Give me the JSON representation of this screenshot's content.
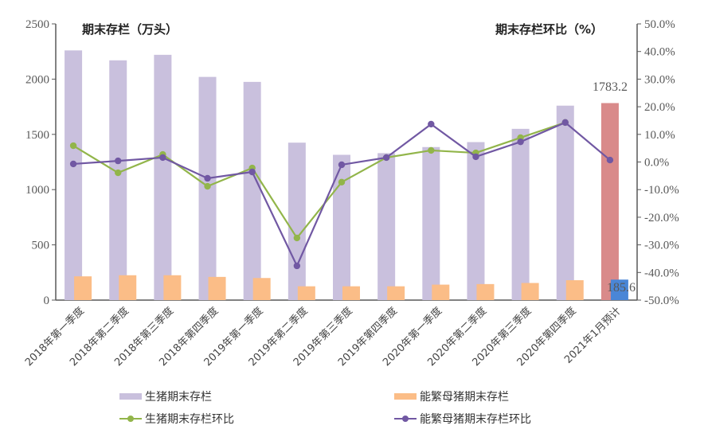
{
  "chart_data": {
    "type": "bar+line",
    "title_left": "期末存栏（万头）",
    "title_right": "期末存栏环比（%）",
    "categories": [
      "2018年第一季度",
      "2018年第二季度",
      "2018年第三季度",
      "2018年第四季度",
      "2019年第一季度",
      "2019年第二季度",
      "2019年第三季度",
      "2019年第四季度",
      "2020年第一季度",
      "2020年第二季度",
      "2020年第三季度",
      "2020年第四季度",
      "2021年1月预计"
    ],
    "left_axis": {
      "min": 0,
      "max": 2500,
      "step": 500,
      "ticks": [
        "0",
        "500",
        "1000",
        "1500",
        "2000",
        "2500"
      ]
    },
    "right_axis": {
      "min": -50,
      "max": 50,
      "step": 10,
      "ticks": [
        "-50.0%",
        "-40.0%",
        "-30.0%",
        "-20.0%",
        "-10.0%",
        "0.0%",
        "10.0%",
        "20.0%",
        "30.0%",
        "40.0%",
        "50.0%"
      ]
    },
    "series": [
      {
        "name": "生猪期末存栏",
        "type": "bar",
        "axis": "left",
        "color": "#c9c0dd",
        "last_color": "#d98a8a",
        "values": [
          2260,
          2170,
          2220,
          2020,
          1975,
          1425,
          1315,
          1330,
          1385,
          1430,
          1550,
          1760,
          1783.2
        ]
      },
      {
        "name": "能繁母猪期末存栏",
        "type": "bar",
        "axis": "left",
        "color": "#fbbd87",
        "last_color": "#4a86d6",
        "values": [
          215,
          225,
          225,
          210,
          200,
          125,
          125,
          125,
          140,
          145,
          155,
          180,
          185.6
        ]
      },
      {
        "name": "生猪期末存栏环比",
        "type": "line",
        "axis": "right",
        "color": "#92b54a",
        "values": [
          5.9,
          -3.9,
          2.7,
          -8.8,
          -2.2,
          -27.5,
          -7.3,
          1.6,
          4.2,
          3.3,
          8.8,
          14.3,
          null
        ]
      },
      {
        "name": "能繁母猪期末存栏环比",
        "type": "line",
        "axis": "right",
        "color": "#7158a3",
        "values": [
          -0.7,
          0.4,
          1.6,
          -5.9,
          -3.6,
          -37.6,
          -1.0,
          1.6,
          13.7,
          1.9,
          7.3,
          14.3,
          0.7
        ]
      }
    ],
    "annotations": [
      {
        "text": "1783.2",
        "category": "2021年1月预计",
        "series": "生猪期末存栏"
      },
      {
        "text": "185.6",
        "category": "2021年1月预计",
        "series": "能繁母猪期末存栏"
      }
    ],
    "legend_position": "bottom",
    "grid": false
  },
  "labels": {
    "title_left": "期末存栏（万头）",
    "title_right": "期末存栏环比（%）",
    "annot_hog": "1783.2",
    "annot_sow": "185.6"
  },
  "legend": [
    {
      "label": "生猪期末存栏",
      "kind": "bar",
      "color": "#c9c0dd"
    },
    {
      "label": "能繁母猪期末存栏",
      "kind": "bar",
      "color": "#fbbd87"
    },
    {
      "label": "生猪期末存栏环比",
      "kind": "line",
      "color": "#92b54a"
    },
    {
      "label": "能繁母猪期末存栏环比",
      "kind": "line",
      "color": "#7158a3"
    }
  ]
}
